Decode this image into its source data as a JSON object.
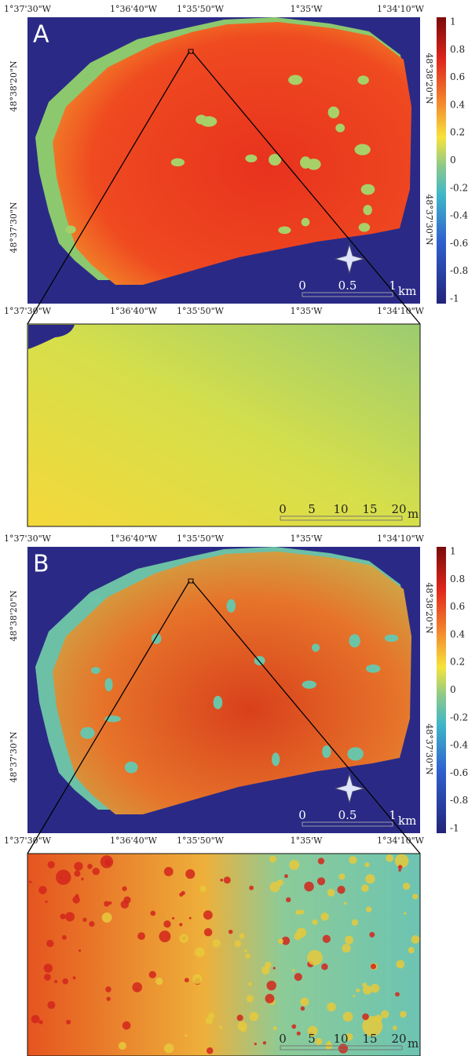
{
  "panels": [
    {
      "label": "A",
      "top_lon_labels": [
        "1°37'30\"W",
        "1°36'40\"W",
        "1°35'50\"W",
        "1°35'W",
        "1°34'10\"W"
      ],
      "bottom_lon_labels": [
        "1°37'30\"W",
        "1°36'40\"W",
        "1°35'50\"W",
        "1°35'W",
        "1°34'10\"W"
      ],
      "left_lat_labels": [
        "48°38'20\"N",
        "48°37'30\"N"
      ],
      "right_lat_labels": [
        "48°38'20\"N",
        "48°37'30\"N"
      ],
      "colorbar_ticks": [
        1,
        0.8,
        0.6,
        0.4,
        0.2,
        0,
        -0.2,
        -0.4,
        -0.6,
        -0.8,
        -1
      ],
      "scale_km": {
        "ticks": [
          0,
          0.5,
          1
        ],
        "unit": "km"
      },
      "scale_m": {
        "ticks": [
          0,
          5,
          10,
          15,
          20
        ],
        "unit": "m"
      }
    },
    {
      "label": "B",
      "top_lon_labels": [
        "1°37'30\"W",
        "1°36'40\"W",
        "1°35'50\"W",
        "1°35'W",
        "1°34'10\"W"
      ],
      "bottom_lon_labels": [
        "1°37'30\"W",
        "1°36'40\"W",
        "1°35'50\"W",
        "1°35'W",
        "1°34'10\"W"
      ],
      "left_lat_labels": [
        "48°38'20\"N",
        "48°37'30\"N"
      ],
      "right_lat_labels": [
        "48°38'20\"N",
        "48°37'30\"N"
      ],
      "colorbar_ticks": [
        1,
        0.8,
        0.6,
        0.4,
        0.2,
        0,
        -0.2,
        -0.4,
        -0.6,
        -0.8,
        -1
      ],
      "scale_km": {
        "ticks": [
          0,
          0.5,
          1
        ],
        "unit": "km"
      },
      "scale_m": {
        "ticks": [
          0,
          5,
          10,
          15,
          20
        ],
        "unit": "m"
      }
    }
  ]
}
